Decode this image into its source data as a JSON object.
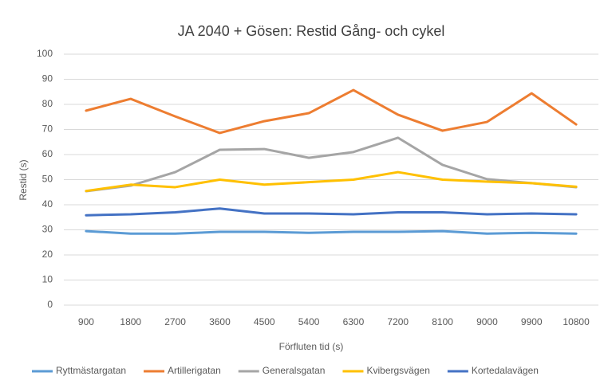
{
  "chart_data": {
    "type": "line",
    "title": "JA 2040 + Gösen: Restid Gång- och cykel",
    "x_label": "Förfluten tid (s)",
    "y_label": "Restid (s)",
    "categories": [
      "900",
      "1800",
      "2700",
      "3600",
      "4500",
      "5400",
      "6300",
      "7200",
      "8100",
      "9000",
      "9900",
      "10800"
    ],
    "ylim": [
      0,
      100
    ],
    "yticks": [
      0,
      10,
      20,
      30,
      40,
      50,
      60,
      70,
      80,
      90,
      100
    ],
    "grid": true,
    "legend": "bottom",
    "series": [
      {
        "name": "Ryttmästargatan",
        "color": "#5B9BD5",
        "values": [
          29.5,
          28.5,
          28.5,
          29.2,
          29.2,
          28.8,
          29.2,
          29.2,
          29.5,
          28.5,
          28.8,
          28.5
        ]
      },
      {
        "name": "Artillerigatan",
        "color": "#ED7D31",
        "values": [
          77.5,
          82.2,
          75.2,
          68.6,
          73.3,
          76.5,
          85.7,
          75.9,
          69.5,
          73,
          84.4,
          72
        ]
      },
      {
        "name": "Generalsgatan",
        "color": "#A5A5A5",
        "values": [
          45.4,
          47.6,
          53,
          61.9,
          62.2,
          58.7,
          61,
          66.7,
          55.9,
          50.2,
          48.6,
          47
        ]
      },
      {
        "name": "Kvibergsvägen",
        "color": "#FFC000",
        "values": [
          45.5,
          48,
          47,
          50,
          48,
          49,
          50,
          53,
          50,
          49.2,
          48.6,
          47.2
        ]
      },
      {
        "name": "Kortedalavägen",
        "color": "#4472C4",
        "values": [
          35.8,
          36.2,
          37,
          38.5,
          36.5,
          36.5,
          36.2,
          37,
          37,
          36.2,
          36.5,
          36.2
        ]
      }
    ]
  }
}
